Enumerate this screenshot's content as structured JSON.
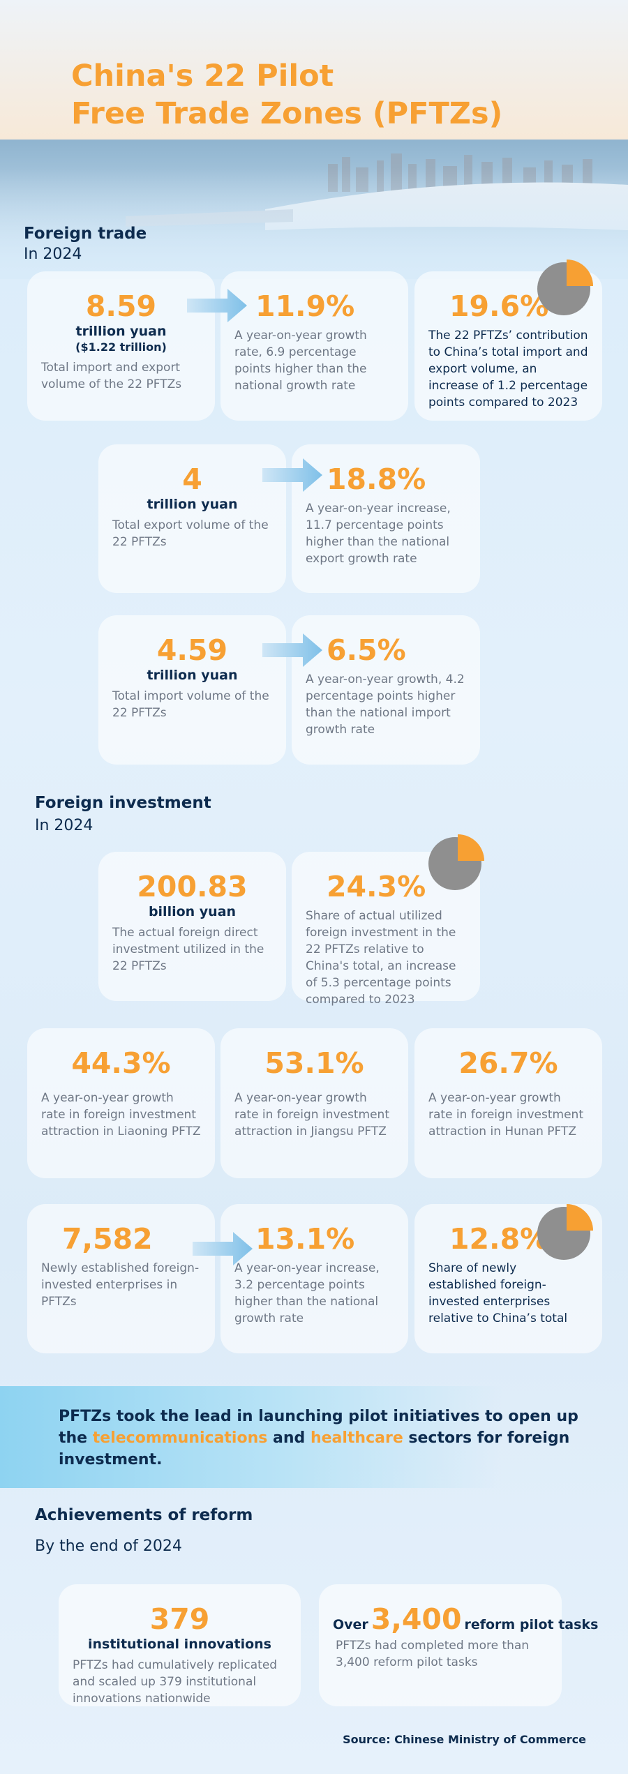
{
  "header": {
    "title": [
      "China's 22 Pilot",
      "Free Trade Zones (PFTZs)"
    ]
  },
  "foreign_trade": {
    "heading": "Foreign trade",
    "subheading": "In 2024",
    "cards": [
      {
        "value": "8.59",
        "unit": "trillion yuan",
        "note": "($1.22 trillion)",
        "text": "Total import and export volume of the 22 PFTZs"
      },
      {
        "value": "11.9%",
        "text": "A year-on-year growth rate, 6.9 percentage points higher than the national growth rate"
      },
      {
        "value": "19.6%",
        "text": "The 22 PFTZs’ contribution to China’s total import and export volume, an increase of 1.2 percentage points compared to 2023"
      },
      {
        "value": "4",
        "unit": "trillion yuan",
        "text": "Total export volume of the 22 PFTZs"
      },
      {
        "value": "18.8%",
        "text": "A year-on-year increase, 11.7 percentage points higher than the national export growth rate"
      },
      {
        "value": "4.59",
        "unit": "trillion yuan",
        "text": "Total import volume of the 22 PFTZs"
      },
      {
        "value": "6.5%",
        "text": "A year-on-year growth, 4.2 percentage points higher than the national import growth rate"
      }
    ]
  },
  "foreign_investment": {
    "heading": "Foreign investment",
    "subheading": "In 2024",
    "cards": [
      {
        "value": "200.83",
        "unit": "billion yuan",
        "text": "The actual foreign direct investment utilized in the 22 PFTZs"
      },
      {
        "value": "24.3%",
        "text": "Share of actual utilized foreign investment in the 22 PFTZs relative to China's total, an increase of 5.3 percentage points compared to 2023"
      },
      {
        "value": "44.3%",
        "text": "A year-on-year growth rate in foreign investment attraction in Liaoning PFTZ"
      },
      {
        "value": "53.1%",
        "text": "A year-on-year growth rate in foreign investment attraction in Jiangsu PFTZ"
      },
      {
        "value": "26.7%",
        "text": "A year-on-year growth rate in foreign investment attraction in Hunan PFTZ"
      },
      {
        "value": "7,582",
        "text": "Newly established foreign-invested enterprises in PFTZs"
      },
      {
        "value": "13.1%",
        "text": "A year-on-year increase, 3.2 percentage points higher than the national growth rate"
      },
      {
        "value": "12.8%",
        "text": "Share of newly established foreign-invested enterprises relative to China’s total"
      }
    ]
  },
  "banner": {
    "parts": [
      "PFTZs took the lead in launching pilot initiatives to open up the ",
      "telecommunications",
      " and ",
      "healthcare",
      " sectors for foreign investment."
    ]
  },
  "reform": {
    "heading": "Achievements of reform",
    "subheading": "By the end of 2024",
    "cards": [
      {
        "value": "379",
        "unit": "institutional innovations",
        "text": "PFTZs had cumulatively replicated and scaled up 379 institutional innovations nationwide"
      },
      {
        "prefix": "Over",
        "value": "3,400",
        "suffix": "reform pilot tasks",
        "text": "PFTZs had completed more than 3,400 reform pilot tasks"
      }
    ]
  },
  "source": "Source: Chinese Ministry of Commerce"
}
